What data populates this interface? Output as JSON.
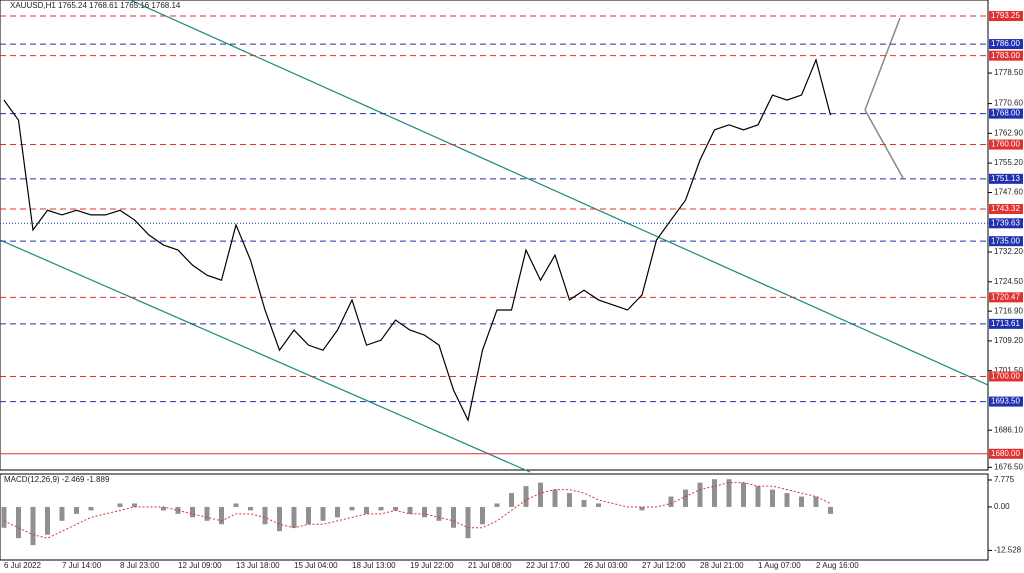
{
  "chart_data": [
    {
      "type": "line",
      "title": "XAUUSD,H1 1765.24 1768.61 1765.16 1768.14",
      "color": "#000000",
      "categories": [
        "6 Jul 2022",
        null,
        null,
        null,
        "7 Jul 14:00",
        null,
        null,
        null,
        "8 Jul 23:00",
        null,
        null,
        null,
        "12 Jul 09:00",
        null,
        null,
        null,
        "13 Jul 18:00",
        null,
        null,
        null,
        "15 Jul 04:00",
        null,
        null,
        null,
        "18 Jul 13:00",
        null,
        null,
        null,
        "19 Jul 22:00",
        null,
        null,
        null,
        "21 Jul 08:00",
        null,
        null,
        null,
        "22 Jul 17:00",
        null,
        null,
        null,
        "26 Jul 03:00",
        null,
        null,
        null,
        "27 Jul 12:00",
        null,
        null,
        null,
        "28 Jul 21:00",
        null,
        null,
        null,
        "1 Aug 07:00",
        null,
        null,
        null,
        "2 Aug 16:00",
        null
      ],
      "values": [
        1771.5,
        1766.3,
        1737.9,
        1743.0,
        1741.8,
        1743.0,
        1741.8,
        1741.8,
        1743.0,
        1740.5,
        1736.6,
        1734.0,
        1732.7,
        1728.8,
        1726.2,
        1724.9,
        1739.2,
        1730.1,
        1717.2,
        1706.8,
        1712.0,
        1708.1,
        1706.8,
        1712.0,
        1719.8,
        1708.1,
        1709.4,
        1714.6,
        1712.0,
        1710.7,
        1708.1,
        1696.5,
        1688.7,
        1706.8,
        1717.2,
        1717.2,
        1732.7,
        1724.9,
        1731.4,
        1719.8,
        1722.3,
        1719.8,
        1718.5,
        1717.2,
        1721.1,
        1735.3,
        1740.5,
        1745.6,
        1756.0,
        1763.8,
        1765.1,
        1763.8,
        1765.1,
        1772.8,
        1771.5,
        1772.8,
        1781.9,
        1767.6
      ],
      "ylim": [
        1675.8,
        1797.4
      ],
      "yticks": [
        {
          "value": 1778.5,
          "label": "1778.50"
        },
        {
          "value": 1770.6,
          "label": "1770.60"
        },
        {
          "value": 1762.9,
          "label": "1762.90"
        },
        {
          "value": 1755.2,
          "label": "1755.20"
        },
        {
          "value": 1747.6,
          "label": "1747.60"
        },
        {
          "value": 1732.2,
          "label": "1732.20"
        },
        {
          "value": 1724.5,
          "label": "1724.50"
        },
        {
          "value": 1716.9,
          "label": "1716.90"
        },
        {
          "value": 1709.2,
          "label": "1709.20"
        },
        {
          "value": 1701.5,
          "label": "1701.50"
        },
        {
          "value": 1686.1,
          "label": "1686.10"
        },
        {
          "value": 1676.5,
          "label": "1676.50"
        }
      ],
      "levels": [
        {
          "value": 1793.25,
          "label": "1793.25",
          "color": "#e03030",
          "style": "dash"
        },
        {
          "value": 1786,
          "label": "1786.00",
          "color": "#2030b0",
          "style": "dash"
        },
        {
          "value": 1783,
          "label": "1783.00",
          "color": "#e03030",
          "style": "dash"
        },
        {
          "value": 1768,
          "label": "1768.00",
          "color": "#2030b0",
          "style": "dash"
        },
        {
          "value": 1760,
          "label": "1760.00",
          "color": "#e03030",
          "style": "dash"
        },
        {
          "value": 1751.13,
          "label": "1751.13",
          "color": "#2030b0",
          "style": "dash"
        },
        {
          "value": 1743.32,
          "label": "1743.32",
          "color": "#e03030",
          "style": "dash"
        },
        {
          "value": 1739.63,
          "label": "1739.63",
          "color": "#2030b0",
          "style": "dot"
        },
        {
          "value": 1735,
          "label": "1735.00",
          "color": "#2030b0",
          "style": "dash"
        },
        {
          "value": 1720.47,
          "label": "1720.47",
          "color": "#e03030",
          "style": "dash"
        },
        {
          "value": 1713.61,
          "label": "1713.61",
          "color": "#2030b0",
          "style": "dash"
        },
        {
          "value": 1700,
          "label": "1700.00",
          "color": "#e03030",
          "style": "dash"
        },
        {
          "value": 1693.5,
          "label": "1693.50",
          "color": "#2030b0",
          "style": "dash"
        },
        {
          "value": 1680,
          "label": "1680.00",
          "color": "#e03030",
          "style": "solid"
        }
      ]
    },
    {
      "type": "bar",
      "title": "MACD(12,26,9) -2.469 -1.889",
      "color": "#909090",
      "signal_color": "#e03030",
      "values": [
        -6,
        -9,
        -11,
        -8,
        -4,
        -2,
        -1,
        0,
        1,
        1,
        0,
        -1,
        -2,
        -3,
        -4,
        -5,
        1,
        -1,
        -5,
        -7,
        -6,
        -5,
        -4,
        -3,
        -1,
        -2,
        -1,
        -1,
        -2,
        -3,
        -4,
        -6,
        -9,
        -5,
        1,
        4,
        6,
        7,
        5,
        4,
        2,
        1,
        0,
        0,
        -1,
        0,
        3,
        5,
        7,
        8,
        8,
        7,
        6,
        5,
        4,
        3,
        3,
        -2
      ],
      "signal_values": [
        -4,
        -6,
        -8,
        -9,
        -7,
        -5,
        -3,
        -2,
        -1,
        0,
        0,
        0,
        -1,
        -2,
        -3,
        -4,
        -2,
        -2,
        -3,
        -5,
        -6,
        -5,
        -5,
        -4,
        -3,
        -2,
        -2,
        -1,
        -2,
        -2,
        -3,
        -4,
        -6,
        -6,
        -4,
        -1,
        2,
        4,
        5,
        5,
        4,
        2,
        1,
        0,
        0,
        0,
        1,
        3,
        5,
        6,
        7,
        7,
        6,
        6,
        5,
        4,
        3,
        1
      ],
      "ylim": [
        -15.3,
        9.5
      ],
      "yticks": [
        7.775,
        {
          "value": 0,
          "label": "0.00"
        },
        -12.528
      ]
    }
  ]
}
